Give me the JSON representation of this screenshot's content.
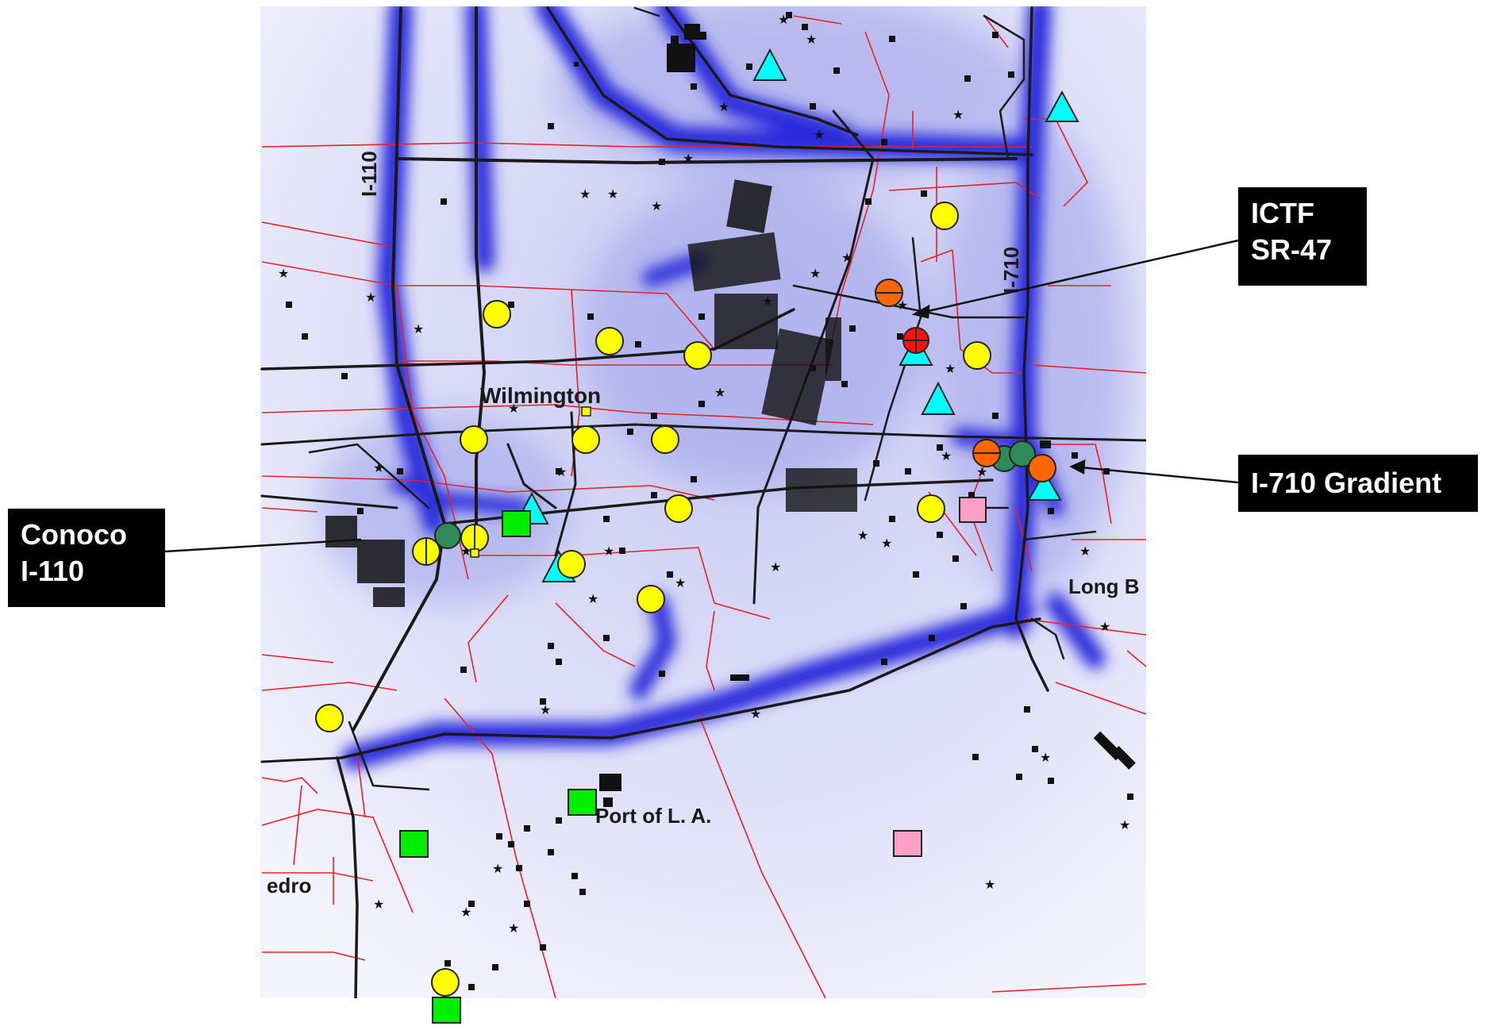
{
  "colors": {
    "road": "#1a1a1a",
    "boundary": "#e8202a",
    "plume_dark": "#2626d9",
    "plume_light": "#d9dbf7",
    "marker_yellow": "#ffff00",
    "marker_cyan": "#00ffff",
    "marker_green_square": "#00ee00",
    "marker_pink_square": "#ff9fc8",
    "marker_dark_green": "#2e8b57",
    "marker_orange": "#ff6600",
    "marker_red": "#ff1111",
    "callout_bg": "#000000",
    "callout_text": "#ffffff"
  },
  "map_labels": {
    "i110": "I-110",
    "i710": "I-710",
    "wilmington": "Wilmington",
    "long_beach": "Long B",
    "port_la": "Port of L. A.",
    "san_pedro": "edro"
  },
  "callouts": {
    "ictf": {
      "line1": "ICTF",
      "line2": "SR-47"
    },
    "i710_gradient": {
      "line1": "I-710 Gradient"
    },
    "conoco": {
      "line1": "Conoco",
      "line2": "I-110"
    }
  },
  "legend_icons": {
    "yellow": "yellow-circle-icon",
    "cyan": "cyan-triangle-icon",
    "green_sq": "green-square-icon",
    "pink_sq": "pink-square-icon",
    "dkgreen": "dark-green-circle-icon",
    "orange": "orange-circle-icon",
    "red": "red-crossed-circle-icon"
  }
}
